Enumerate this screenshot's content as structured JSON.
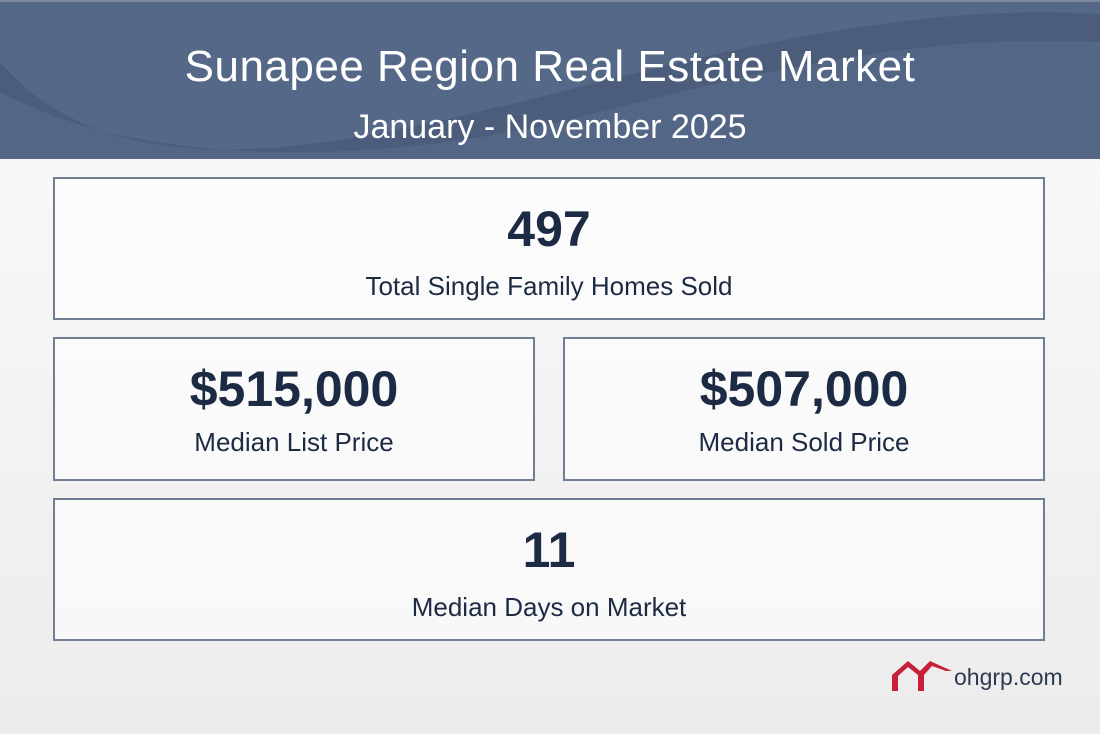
{
  "header": {
    "title": "Sunapee Region Real Estate Market",
    "subtitle": "January - November 2025"
  },
  "stats": [
    {
      "value": "497",
      "label": "Total Single Family Homes Sold"
    },
    {
      "value": "$515,000",
      "label": "Median List Price"
    },
    {
      "value": "$507,000",
      "label": "Median Sold Price"
    },
    {
      "value": "11",
      "label": "Median Days on Market"
    }
  ],
  "logo": {
    "text": "ohgrp.com",
    "color": "#c8203a"
  },
  "colors": {
    "header": "#536685",
    "text": "#1c2a44",
    "border": "#6f7e93"
  }
}
